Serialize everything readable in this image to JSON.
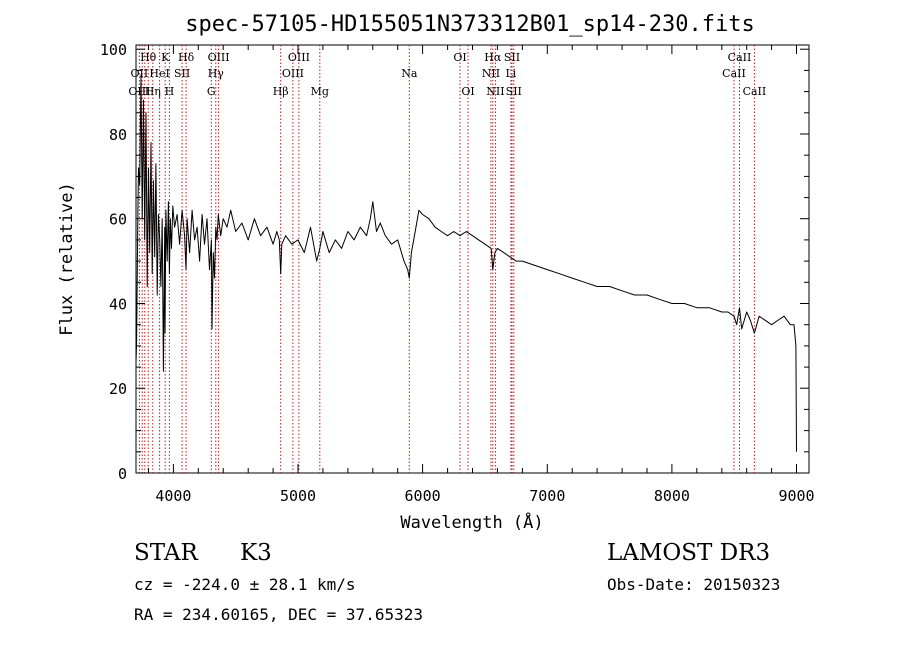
{
  "chart_data": {
    "type": "line",
    "title": "spec-57105-HD155051N373312B01_sp14-230.fits",
    "xlabel": "Wavelength (Å)",
    "ylabel": "Flux (relative)",
    "xlim": [
      3700,
      9100
    ],
    "ylim": [
      0,
      101
    ],
    "xticks": [
      4000,
      5000,
      6000,
      7000,
      8000,
      9000
    ],
    "yticks": [
      0,
      20,
      40,
      60,
      80,
      100
    ],
    "grid": false,
    "series": [
      {
        "name": "flux",
        "color": "#000000",
        "x": [
          3700,
          3705,
          3710,
          3715,
          3720,
          3730,
          3740,
          3750,
          3760,
          3770,
          3780,
          3790,
          3800,
          3810,
          3820,
          3830,
          3840,
          3850,
          3860,
          3870,
          3880,
          3890,
          3900,
          3910,
          3920,
          3930,
          3933,
          3940,
          3950,
          3960,
          3968,
          3975,
          3985,
          3995,
          4010,
          4030,
          4050,
          4070,
          4090,
          4101,
          4110,
          4130,
          4150,
          4170,
          4190,
          4210,
          4230,
          4250,
          4270,
          4290,
          4305,
          4310,
          4320,
          4330,
          4340,
          4350,
          4360,
          4380,
          4400,
          4430,
          4460,
          4500,
          4550,
          4600,
          4650,
          4700,
          4750,
          4800,
          4830,
          4850,
          4861,
          4870,
          4900,
          4950,
          5000,
          5050,
          5100,
          5150,
          5175,
          5200,
          5250,
          5300,
          5350,
          5400,
          5450,
          5500,
          5550,
          5580,
          5600,
          5630,
          5660,
          5700,
          5750,
          5800,
          5850,
          5880,
          5893,
          5910,
          5940,
          5970,
          6000,
          6050,
          6100,
          6150,
          6200,
          6250,
          6300,
          6350,
          6400,
          6450,
          6500,
          6550,
          6563,
          6580,
          6600,
          6650,
          6700,
          6750,
          6800,
          6900,
          7000,
          7100,
          7200,
          7300,
          7400,
          7500,
          7600,
          7700,
          7800,
          7900,
          8000,
          8100,
          8200,
          8300,
          8400,
          8450,
          8498,
          8520,
          8542,
          8560,
          8600,
          8630,
          8662,
          8700,
          8750,
          8800,
          8850,
          8900,
          8950,
          8980,
          8995,
          9000
        ],
        "y": [
          26,
          31,
          45,
          62,
          72,
          68,
          94,
          60,
          88,
          55,
          85,
          44,
          72,
          52,
          78,
          47,
          69,
          51,
          73,
          42,
          61,
          55,
          44,
          60,
          24,
          58,
          33,
          62,
          50,
          64,
          47,
          60,
          53,
          63,
          58,
          61,
          54,
          62,
          56,
          48,
          60,
          52,
          62,
          55,
          58,
          50,
          61,
          54,
          60,
          48,
          55,
          34,
          52,
          46,
          58,
          55,
          61,
          56,
          60,
          58,
          62,
          57,
          59,
          55,
          60,
          56,
          58,
          54,
          57,
          55,
          47,
          54,
          56,
          54,
          55,
          52,
          58,
          50,
          53,
          57,
          52,
          55,
          53,
          57,
          55,
          58,
          56,
          60,
          64,
          57,
          59,
          56,
          54,
          55,
          50,
          48,
          46,
          52,
          57,
          62,
          61,
          60,
          58,
          57,
          56,
          57,
          56,
          57,
          56,
          55,
          54,
          53,
          48,
          52,
          53,
          52,
          51,
          50,
          50,
          49,
          48,
          47,
          46,
          45,
          44,
          44,
          43,
          42,
          42,
          41,
          40,
          40,
          39,
          39,
          38,
          38,
          37,
          35,
          39,
          34,
          38,
          36,
          33,
          37,
          36,
          35,
          36,
          37,
          35,
          35,
          30,
          5
        ]
      }
    ],
    "line_labels": [
      {
        "label": "Hθ",
        "wavelength": 3798,
        "row": 1
      },
      {
        "label": "OII",
        "wavelength": 3727,
        "row": 2
      },
      {
        "label": "OIII",
        "wavelength": 3727,
        "row": 3
      },
      {
        "label": "K",
        "wavelength": 3934,
        "row": 1
      },
      {
        "label": "HeI",
        "wavelength": 3889,
        "row": 2
      },
      {
        "label": "Hη",
        "wavelength": 3835,
        "row": 3
      },
      {
        "label": "SII",
        "wavelength": 4070,
        "row": 2
      },
      {
        "label": "H",
        "wavelength": 3968,
        "row": 3
      },
      {
        "label": "Hδ",
        "wavelength": 4102,
        "row": 1
      },
      {
        "label": "OIII",
        "wavelength": 4363,
        "row": 1
      },
      {
        "label": "Hγ",
        "wavelength": 4340,
        "row": 2
      },
      {
        "label": "G",
        "wavelength": 4304,
        "row": 3
      },
      {
        "label": "OIII",
        "wavelength": 5007,
        "row": 1
      },
      {
        "label": "OIII",
        "wavelength": 4959,
        "row": 2
      },
      {
        "label": "Hβ",
        "wavelength": 4861,
        "row": 3
      },
      {
        "label": "Mg",
        "wavelength": 5175,
        "row": 3
      },
      {
        "label": "Na",
        "wavelength": 5893,
        "row": 2
      },
      {
        "label": "OI",
        "wavelength": 6300,
        "row": 1
      },
      {
        "label": "OI",
        "wavelength": 6364,
        "row": 3
      },
      {
        "label": "Hα",
        "wavelength": 6563,
        "row": 1
      },
      {
        "label": "NII",
        "wavelength": 6548,
        "row": 2
      },
      {
        "label": "NII",
        "wavelength": 6584,
        "row": 3
      },
      {
        "label": "SII",
        "wavelength": 6717,
        "row": 1
      },
      {
        "label": "Li",
        "wavelength": 6708,
        "row": 2
      },
      {
        "label": "SII",
        "wavelength": 6731,
        "row": 3
      },
      {
        "label": "CaII",
        "wavelength": 8542,
        "row": 1
      },
      {
        "label": "CaII",
        "wavelength": 8498,
        "row": 2
      },
      {
        "label": "CaII",
        "wavelength": 8662,
        "row": 3
      }
    ],
    "marker_lines": [
      3727,
      3750,
      3771,
      3798,
      3835,
      3889,
      3934,
      3968,
      4070,
      4102,
      4304,
      4340,
      4363,
      4861,
      4959,
      5007,
      5175,
      5893,
      6300,
      6364,
      6548,
      6563,
      6584,
      6708,
      6717,
      6731,
      8498,
      8542,
      8662
    ],
    "colors": {
      "marker": "#b22222",
      "line": "#000000",
      "axes": "#000000"
    }
  },
  "info": {
    "object_class": "STAR",
    "subclass": "K3",
    "survey": "LAMOST DR3",
    "cz": "cz = -224.0 ± 28.1 km/s",
    "obs_date": "Obs-Date: 20150323",
    "coords": "RA = 234.60165, DEC =  37.65323"
  }
}
